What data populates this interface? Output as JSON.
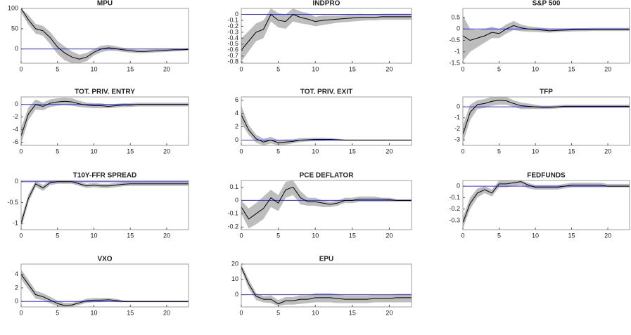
{
  "chart_data": [
    {
      "type": "line",
      "title": "MPU",
      "x": [
        0,
        1,
        2,
        3,
        4,
        5,
        6,
        7,
        8,
        9,
        10,
        11,
        12,
        13,
        14,
        15,
        16,
        17,
        18,
        19,
        20,
        21,
        22,
        23
      ],
      "values": [
        100,
        72,
        50,
        45,
        28,
        5,
        -10,
        -20,
        -25,
        -20,
        -8,
        0,
        3,
        1,
        -2,
        -4,
        -6,
        -6,
        -5,
        -4,
        -3,
        -2,
        -2,
        -1
      ],
      "lower": [
        90,
        60,
        38,
        33,
        12,
        -12,
        -28,
        -35,
        -35,
        -30,
        -16,
        -8,
        -4,
        -5,
        -7,
        -9,
        -10,
        -10,
        -9,
        -8,
        -7,
        -6,
        -5,
        -4
      ],
      "upper": [
        100,
        84,
        62,
        57,
        42,
        20,
        6,
        -6,
        -14,
        -10,
        0,
        8,
        10,
        7,
        3,
        0,
        -2,
        -2,
        -1,
        0,
        1,
        1,
        1,
        2
      ],
      "xlim": [
        0,
        23
      ],
      "xticks": [
        0,
        5,
        10,
        15,
        20
      ],
      "ylim": [
        -35,
        100
      ],
      "yticks": [
        0,
        50,
        100
      ],
      "color": "#000000",
      "band_color": "#bdbdbd",
      "zero_line_color": "#3333ff"
    },
    {
      "type": "line",
      "title": "INDPRO",
      "x": [
        0,
        1,
        2,
        3,
        4,
        5,
        6,
        7,
        8,
        9,
        10,
        11,
        12,
        13,
        14,
        15,
        16,
        17,
        18,
        19,
        20,
        21,
        22,
        23
      ],
      "values": [
        -0.6,
        -0.45,
        -0.3,
        -0.25,
        0,
        -0.1,
        -0.12,
        0,
        -0.05,
        -0.08,
        -0.12,
        -0.1,
        -0.09,
        -0.08,
        -0.07,
        -0.06,
        -0.05,
        -0.05,
        -0.05,
        -0.04,
        -0.04,
        -0.04,
        -0.04,
        -0.04
      ],
      "lower": [
        -0.8,
        -0.62,
        -0.45,
        -0.4,
        -0.12,
        -0.22,
        -0.24,
        -0.12,
        -0.15,
        -0.17,
        -0.2,
        -0.18,
        -0.16,
        -0.14,
        -0.13,
        -0.12,
        -0.11,
        -0.1,
        -0.1,
        -0.09,
        -0.09,
        -0.09,
        -0.09,
        -0.09
      ],
      "upper": [
        -0.4,
        -0.28,
        -0.15,
        -0.1,
        0.1,
        0.02,
        0,
        0.1,
        0.05,
        0.02,
        -0.04,
        -0.02,
        -0.02,
        -0.02,
        -0.01,
        0,
        0.01,
        0,
        0,
        0.01,
        0.01,
        0.01,
        0.01,
        0.01
      ],
      "xlim": [
        0,
        23
      ],
      "xticks": [
        0,
        5,
        10,
        15,
        20
      ],
      "ylim": [
        -0.82,
        0.1
      ],
      "yticks": [
        -0.8,
        -0.7,
        -0.6,
        -0.5,
        -0.4,
        -0.3,
        -0.2,
        -0.1,
        0
      ],
      "color": "#000000",
      "band_color": "#bdbdbd",
      "zero_line_color": "#3333ff"
    },
    {
      "type": "line",
      "title": "S&P 500",
      "x": [
        0,
        1,
        2,
        3,
        4,
        5,
        6,
        7,
        8,
        9,
        10,
        11,
        12,
        13,
        14,
        15,
        16,
        17,
        18,
        19,
        20,
        21,
        22,
        23
      ],
      "values": [
        -0.3,
        -0.5,
        -0.4,
        -0.3,
        -0.15,
        -0.2,
        0,
        0.15,
        0.05,
        0,
        -0.02,
        -0.05,
        -0.08,
        -0.06,
        -0.05,
        -0.04,
        -0.03,
        -0.03,
        -0.02,
        -0.02,
        -0.02,
        -0.02,
        -0.02,
        -0.02
      ],
      "lower": [
        -1.4,
        -1,
        -0.8,
        -0.6,
        -0.4,
        -0.4,
        -0.2,
        -0.05,
        -0.1,
        -0.12,
        -0.13,
        -0.15,
        -0.16,
        -0.14,
        -0.12,
        -0.11,
        -0.1,
        -0.1,
        -0.09,
        -0.09,
        -0.09,
        -0.09,
        -0.09,
        -0.09
      ],
      "upper": [
        0.6,
        0,
        -0.05,
        0,
        0.1,
        0,
        0.2,
        0.35,
        0.2,
        0.12,
        0.09,
        0.05,
        0.02,
        0.02,
        0.02,
        0.03,
        0.04,
        0.04,
        0.05,
        0.05,
        0.05,
        0.05,
        0.05,
        0.05
      ],
      "xlim": [
        0,
        23
      ],
      "xticks": [
        0,
        5,
        10,
        15,
        20
      ],
      "ylim": [
        -1.5,
        0.9
      ],
      "yticks": [
        -1.5,
        -1,
        -0.5,
        0,
        0.5
      ],
      "color": "#000000",
      "band_color": "#bdbdbd",
      "zero_line_color": "#3333ff"
    },
    {
      "type": "line",
      "title": "TOT. PRIV. ENTRY",
      "x": [
        0,
        1,
        2,
        3,
        4,
        5,
        6,
        7,
        8,
        9,
        10,
        11,
        12,
        13,
        14,
        15,
        16,
        17,
        18,
        19,
        20,
        21,
        22,
        23
      ],
      "values": [
        -5,
        -1.5,
        0,
        -0.3,
        0.2,
        0.4,
        0.5,
        0.4,
        0.1,
        -0.1,
        -0.2,
        -0.2,
        -0.3,
        -0.2,
        -0.1,
        -0.1,
        0,
        0,
        0,
        0,
        0,
        0,
        0,
        0
      ],
      "lower": [
        -6.3,
        -2.5,
        -0.8,
        -0.9,
        -0.4,
        -0.2,
        -0.1,
        -0.2,
        -0.4,
        -0.5,
        -0.6,
        -0.6,
        -0.6,
        -0.5,
        -0.4,
        -0.4,
        -0.3,
        -0.3,
        -0.3,
        -0.3,
        -0.3,
        -0.3,
        -0.3,
        -0.3
      ],
      "upper": [
        -3.7,
        -0.5,
        0.8,
        0.3,
        0.8,
        1,
        1.1,
        1,
        0.6,
        0.3,
        0.2,
        0.2,
        0,
        0.1,
        0.2,
        0.2,
        0.3,
        0.3,
        0.3,
        0.3,
        0.3,
        0.3,
        0.3,
        0.3
      ],
      "xlim": [
        0,
        23
      ],
      "xticks": [
        0,
        5,
        10,
        15,
        20
      ],
      "ylim": [
        -6.5,
        1.2
      ],
      "yticks": [
        -6,
        -4,
        -2,
        0
      ],
      "color": "#000000",
      "band_color": "#bdbdbd",
      "zero_line_color": "#3333ff"
    },
    {
      "type": "line",
      "title": "TOT. PRIV. EXIT",
      "x": [
        0,
        1,
        2,
        3,
        4,
        5,
        6,
        7,
        8,
        9,
        10,
        11,
        12,
        13,
        14,
        15,
        16,
        17,
        18,
        19,
        20,
        21,
        22,
        23
      ],
      "values": [
        3.8,
        1.5,
        0.2,
        -0.3,
        0,
        -0.4,
        -0.3,
        -0.2,
        0,
        0.05,
        0.1,
        0.1,
        0.1,
        0.05,
        0,
        0,
        0,
        0,
        0,
        0,
        0,
        0,
        0,
        0
      ],
      "lower": [
        2.5,
        0.8,
        -0.4,
        -0.8,
        -0.5,
        -0.8,
        -0.7,
        -0.5,
        -0.3,
        -0.2,
        -0.15,
        -0.15,
        -0.1,
        -0.1,
        -0.1,
        -0.1,
        -0.1,
        -0.1,
        -0.1,
        -0.1,
        -0.1,
        -0.1,
        -0.1,
        -0.1
      ],
      "upper": [
        5.2,
        2.3,
        0.8,
        0.2,
        0.5,
        0,
        0.1,
        0.1,
        0.3,
        0.3,
        0.35,
        0.35,
        0.3,
        0.2,
        0.1,
        0.1,
        0.1,
        0.1,
        0.1,
        0.1,
        0.1,
        0.1,
        0.1,
        0.1
      ],
      "xlim": [
        0,
        23
      ],
      "xticks": [
        0,
        5,
        10,
        15,
        20
      ],
      "ylim": [
        -0.8,
        6.5
      ],
      "yticks": [
        0,
        2,
        4,
        6
      ],
      "color": "#000000",
      "band_color": "#bdbdbd",
      "zero_line_color": "#3333ff"
    },
    {
      "type": "line",
      "title": "TFP",
      "x": [
        0,
        1,
        2,
        3,
        4,
        5,
        6,
        7,
        8,
        9,
        10,
        11,
        12,
        13,
        14,
        15,
        16,
        17,
        18,
        19,
        20,
        21,
        22,
        23
      ],
      "values": [
        -2.5,
        -0.5,
        0.2,
        0.3,
        0.5,
        0.6,
        0.55,
        0.3,
        0.1,
        0.05,
        0,
        -0.05,
        -0.05,
        0,
        0.05,
        0.05,
        0.05,
        0.05,
        0.05,
        0.05,
        0.05,
        0.05,
        0.05,
        0.05
      ],
      "lower": [
        -3.3,
        -1.2,
        -0.2,
        -0.1,
        0.1,
        0.2,
        0.2,
        0,
        -0.2,
        -0.2,
        -0.2,
        -0.2,
        -0.2,
        -0.15,
        -0.1,
        -0.1,
        -0.1,
        -0.1,
        -0.1,
        -0.1,
        -0.1,
        -0.1,
        -0.1,
        -0.1
      ],
      "upper": [
        -1.7,
        0.2,
        0.6,
        0.7,
        0.9,
        0.9,
        0.9,
        0.6,
        0.4,
        0.3,
        0.2,
        0.1,
        0.1,
        0.15,
        0.2,
        0.2,
        0.2,
        0.2,
        0.2,
        0.2,
        0.2,
        0.2,
        0.2,
        0.2
      ],
      "xlim": [
        0,
        23
      ],
      "xticks": [
        0,
        5,
        10,
        15,
        20
      ],
      "ylim": [
        -3.5,
        0.9
      ],
      "yticks": [
        -3,
        -2,
        -1,
        0
      ],
      "color": "#000000",
      "band_color": "#bdbdbd",
      "zero_line_color": "#3333ff"
    },
    {
      "type": "line",
      "title": "T10Y-FFR SPREAD",
      "x": [
        0,
        1,
        2,
        3,
        4,
        5,
        6,
        7,
        8,
        9,
        10,
        11,
        12,
        13,
        14,
        15,
        16,
        17,
        18,
        19,
        20,
        21,
        22,
        23
      ],
      "values": [
        -1,
        -0.4,
        -0.05,
        -0.15,
        -0.02,
        0,
        0,
        0,
        -0.05,
        -0.1,
        -0.08,
        -0.1,
        -0.1,
        -0.08,
        -0.06,
        -0.05,
        -0.05,
        -0.05,
        -0.05,
        -0.05,
        -0.05,
        -0.05,
        -0.05,
        -0.05
      ],
      "lower": [
        -1.12,
        -0.5,
        -0.12,
        -0.22,
        -0.08,
        -0.05,
        -0.05,
        -0.05,
        -0.1,
        -0.15,
        -0.13,
        -0.15,
        -0.15,
        -0.13,
        -0.11,
        -0.1,
        -0.1,
        -0.1,
        -0.1,
        -0.1,
        -0.1,
        -0.1,
        -0.1,
        -0.1
      ],
      "upper": [
        -0.88,
        -0.3,
        0.02,
        -0.08,
        0.03,
        0.03,
        0.03,
        0.03,
        0,
        -0.05,
        -0.03,
        -0.05,
        -0.05,
        -0.03,
        -0.01,
        0,
        0,
        0,
        0,
        0,
        0,
        0,
        0,
        0
      ],
      "xlim": [
        0,
        23
      ],
      "xticks": [
        0,
        5,
        10,
        15,
        20
      ],
      "ylim": [
        -1.15,
        0.03
      ],
      "yticks": [
        -1,
        -0.5,
        0
      ],
      "color": "#000000",
      "band_color": "#bdbdbd",
      "zero_line_color": "#3333ff"
    },
    {
      "type": "line",
      "title": "PCE DEFLATOR",
      "x": [
        0,
        1,
        2,
        3,
        4,
        5,
        6,
        7,
        8,
        9,
        10,
        11,
        12,
        13,
        14,
        15,
        16,
        17,
        18,
        19,
        20,
        21,
        22,
        23
      ],
      "values": [
        -0.05,
        -0.14,
        -0.1,
        -0.06,
        0.02,
        -0.02,
        0.08,
        0.1,
        0.02,
        -0.01,
        -0.01,
        -0.02,
        -0.03,
        -0.02,
        0,
        0,
        0.01,
        0.01,
        0.01,
        0.01,
        0.005,
        0,
        0,
        0
      ],
      "lower": [
        -0.1,
        -0.21,
        -0.18,
        -0.14,
        -0.05,
        -0.08,
        0.02,
        0.04,
        -0.03,
        -0.04,
        -0.04,
        -0.05,
        -0.05,
        -0.04,
        -0.02,
        -0.02,
        -0.01,
        -0.01,
        -0.01,
        -0.01,
        -0.01,
        -0.01,
        -0.01,
        -0.01
      ],
      "upper": [
        0,
        -0.06,
        -0.02,
        0.03,
        0.08,
        0.04,
        0.14,
        0.15,
        0.07,
        0.02,
        0.02,
        0,
        -0.01,
        0,
        0.02,
        0.02,
        0.03,
        0.03,
        0.03,
        0.02,
        0.02,
        0.01,
        0.01,
        0.01
      ],
      "xlim": [
        0,
        23
      ],
      "xticks": [
        0,
        5,
        10,
        15,
        20
      ],
      "ylim": [
        -0.22,
        0.15
      ],
      "yticks": [
        -0.2,
        -0.1,
        0,
        0.1
      ],
      "color": "#000000",
      "band_color": "#bdbdbd",
      "zero_line_color": "#3333ff"
    },
    {
      "type": "line",
      "title": "FEDFUNDS",
      "x": [
        0,
        1,
        2,
        3,
        4,
        5,
        6,
        7,
        8,
        9,
        10,
        11,
        12,
        13,
        14,
        15,
        16,
        17,
        18,
        19,
        20,
        21,
        22,
        23
      ],
      "values": [
        -0.32,
        -0.15,
        -0.06,
        -0.03,
        -0.06,
        0.02,
        0.02,
        0.03,
        0.04,
        0.01,
        -0.01,
        -0.01,
        -0.01,
        -0.01,
        0,
        0.01,
        0.01,
        0.01,
        0.01,
        0.01,
        0,
        0,
        0,
        0
      ],
      "lower": [
        -0.37,
        -0.2,
        -0.1,
        -0.06,
        -0.09,
        -0.01,
        -0.01,
        0,
        0.01,
        -0.02,
        -0.03,
        -0.03,
        -0.03,
        -0.03,
        -0.02,
        -0.01,
        -0.01,
        -0.01,
        -0.01,
        -0.01,
        -0.01,
        -0.01,
        -0.01,
        -0.01
      ],
      "upper": [
        -0.27,
        -0.1,
        -0.02,
        0,
        -0.03,
        0.05,
        0.05,
        0.05,
        0.05,
        0.03,
        0.01,
        0.01,
        0.01,
        0.01,
        0.02,
        0.03,
        0.03,
        0.03,
        0.03,
        0.03,
        0.02,
        0.02,
        0.02,
        0.02
      ],
      "xlim": [
        0,
        23
      ],
      "xticks": [
        0,
        5,
        10,
        15,
        20
      ],
      "ylim": [
        -0.38,
        0.05
      ],
      "yticks": [
        -0.3,
        -0.2,
        -0.1,
        0
      ],
      "color": "#000000",
      "band_color": "#bdbdbd",
      "zero_line_color": "#3333ff"
    },
    {
      "type": "line",
      "title": "VXO",
      "x": [
        0,
        1,
        2,
        3,
        4,
        5,
        6,
        7,
        8,
        9,
        10,
        11,
        12,
        13,
        14,
        15,
        16,
        17,
        18,
        19,
        20,
        21,
        22,
        23
      ],
      "values": [
        4,
        2.5,
        1,
        0.7,
        0.2,
        -0.3,
        -0.6,
        -0.5,
        -0.2,
        0.1,
        0.2,
        0.2,
        0.25,
        0.15,
        0,
        0,
        0,
        0,
        0,
        0,
        0,
        0,
        0,
        0
      ],
      "lower": [
        3.3,
        1.8,
        0.4,
        0.2,
        -0.3,
        -0.7,
        -1,
        -0.8,
        -0.5,
        -0.2,
        -0.1,
        -0.1,
        0,
        -0.1,
        -0.1,
        -0.1,
        -0.1,
        -0.1,
        -0.1,
        -0.1,
        -0.1,
        -0.1,
        -0.1,
        -0.1
      ],
      "upper": [
        4.7,
        3.2,
        1.6,
        1.2,
        0.7,
        0.1,
        -0.2,
        -0.2,
        0.1,
        0.4,
        0.5,
        0.5,
        0.5,
        0.4,
        0.15,
        0.1,
        0.1,
        0.1,
        0.1,
        0.1,
        0.1,
        0.1,
        0.1,
        0.1
      ],
      "xlim": [
        0,
        23
      ],
      "xticks": [
        0,
        5,
        10,
        15,
        20
      ],
      "ylim": [
        -0.8,
        5.5
      ],
      "yticks": [
        0,
        2,
        4
      ],
      "color": "#000000",
      "band_color": "#bdbdbd",
      "zero_line_color": "#3333ff"
    },
    {
      "type": "line",
      "title": "EPU",
      "x": [
        0,
        1,
        2,
        3,
        4,
        5,
        6,
        7,
        8,
        9,
        10,
        11,
        12,
        13,
        14,
        15,
        16,
        17,
        18,
        19,
        20,
        21,
        22,
        23
      ],
      "values": [
        18,
        7,
        -1,
        -3,
        -3,
        -6,
        -4,
        -4,
        -3,
        -3,
        -2,
        -2,
        -2,
        -2.5,
        -3,
        -3,
        -3,
        -3,
        -2.5,
        -2.5,
        -2.5,
        -2,
        -2,
        -2
      ],
      "lower": [
        16,
        4,
        -3.5,
        -5,
        -5.5,
        -7.5,
        -6.5,
        -6.5,
        -6,
        -5.5,
        -5,
        -5,
        -5,
        -5.5,
        -5.5,
        -5.5,
        -5.5,
        -5.5,
        -5,
        -5,
        -5,
        -5,
        -5,
        -5
      ],
      "upper": [
        20,
        10,
        1,
        -1,
        -0.5,
        -3.5,
        -1.5,
        -1.5,
        -0.5,
        -0.5,
        1,
        1,
        1,
        0.5,
        -0.5,
        -0.5,
        -0.5,
        -0.5,
        0,
        0,
        0,
        0.5,
        0.5,
        0.5
      ],
      "xlim": [
        0,
        23
      ],
      "xticks": [
        0,
        5,
        10,
        15,
        20
      ],
      "ylim": [
        -8,
        20
      ],
      "yticks": [
        0,
        10,
        20
      ],
      "color": "#000000",
      "band_color": "#bdbdbd",
      "zero_line_color": "#3333ff"
    }
  ]
}
